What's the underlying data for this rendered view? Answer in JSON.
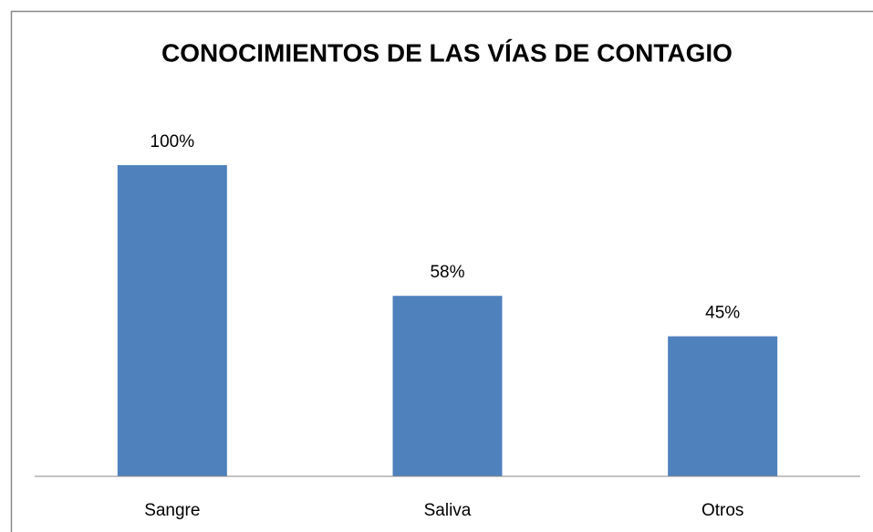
{
  "chart_data": {
    "type": "bar",
    "title": "CONOCIMIENTOS DE LAS VÍAS DE CONTAGIO",
    "categories": [
      "Sangre",
      "Saliva",
      "Otros"
    ],
    "values": [
      100,
      58,
      45
    ],
    "value_labels": [
      "100%",
      "58%",
      "45%"
    ],
    "color": "#4f81bd",
    "ylim": [
      0,
      100
    ]
  }
}
